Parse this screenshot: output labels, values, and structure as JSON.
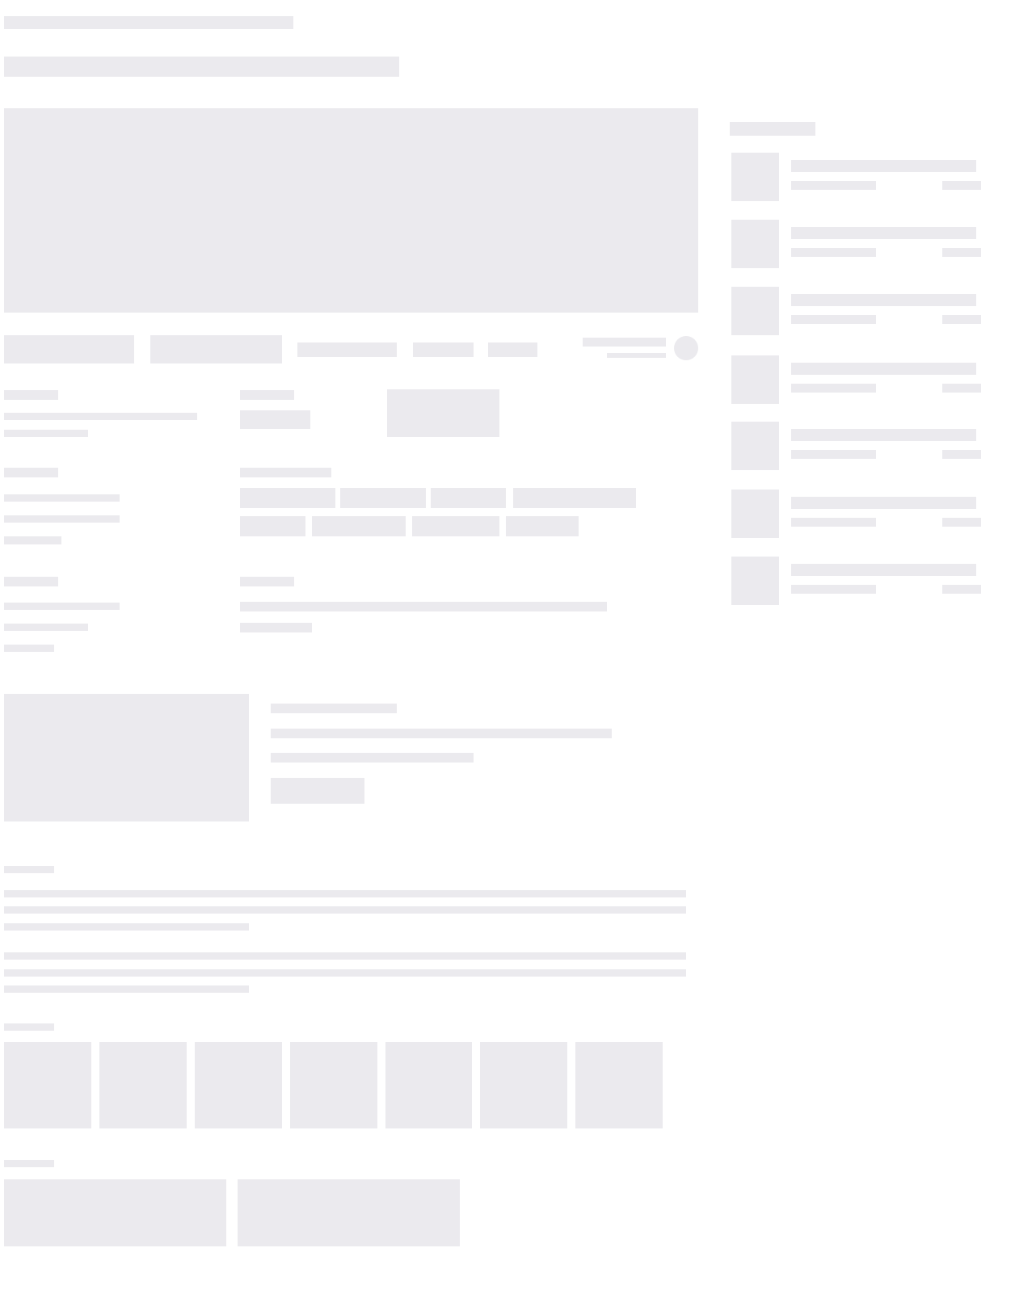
{
  "state": "loading-skeleton",
  "colors": {
    "background": "#FFFFFF",
    "skeleton": "#EBEAEE"
  },
  "sidebar": {
    "item_count": 7
  },
  "gallery": {
    "tile_count": 7
  },
  "related": {
    "card_count": 2
  }
}
